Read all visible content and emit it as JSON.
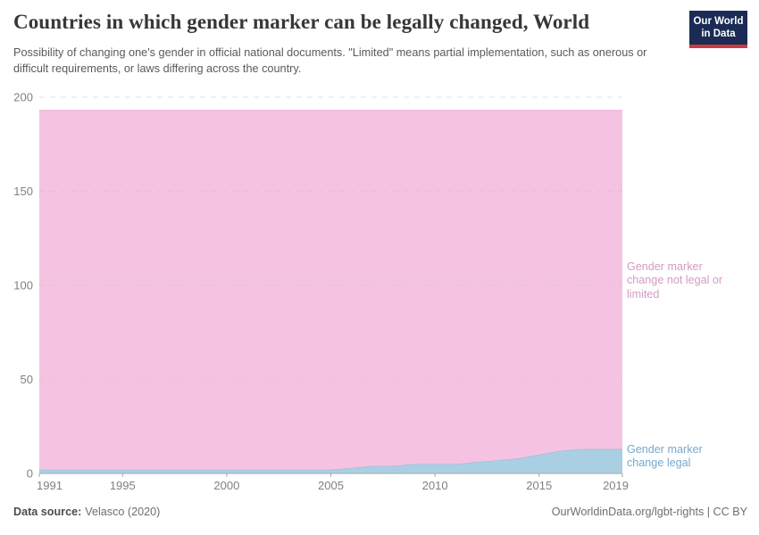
{
  "header": {
    "title": "Countries in which gender marker can be legally changed, World",
    "subtitle": "Possibility of changing one's gender in official national documents. \"Limited\" means partial implementation, such as onerous or difficult requirements, or laws differing across the country.",
    "logo": {
      "line1": "Our World",
      "line2": "in Data"
    }
  },
  "chart_data": {
    "type": "area",
    "stacked": true,
    "title": "Countries in which gender marker can be legally changed, World",
    "x": [
      1991,
      1992,
      1993,
      1994,
      1995,
      1996,
      1997,
      1998,
      1999,
      2000,
      2001,
      2002,
      2003,
      2004,
      2005,
      2006,
      2007,
      2008,
      2009,
      2010,
      2011,
      2012,
      2013,
      2014,
      2015,
      2016,
      2017,
      2018,
      2019
    ],
    "series": [
      {
        "name": "Gender marker change legal",
        "color": "#aacfe3",
        "line_color": "#8ebfdc",
        "label_color": "#76a9ce",
        "values": [
          2,
          2,
          2,
          2,
          2,
          2,
          2,
          2,
          2,
          2,
          2,
          2,
          2,
          2,
          2,
          3,
          4,
          4,
          5,
          5,
          5,
          6,
          7,
          8,
          10,
          12,
          13,
          13,
          13
        ]
      },
      {
        "name": "Gender marker change not legal or limited",
        "color": "#f5c3e1",
        "line_color": "#eeaed6",
        "label_color": "#d39bc5",
        "values": [
          191,
          191,
          191,
          191,
          191,
          191,
          191,
          191,
          191,
          191,
          191,
          191,
          191,
          191,
          191,
          190,
          189,
          189,
          188,
          188,
          188,
          187,
          186,
          185,
          183,
          181,
          180,
          180,
          180
        ]
      }
    ],
    "total_countries": 193,
    "ylim": [
      0,
      200
    ],
    "yticks": [
      0,
      50,
      100,
      150,
      200
    ],
    "xticks": [
      1991,
      1995,
      2000,
      2005,
      2010,
      2015,
      2019
    ],
    "grid": "dashed-horizontal",
    "legend_position": "right-edge-labels"
  },
  "labels": {
    "not_legal": {
      "lines": [
        "Gender marker",
        "change not legal or",
        "limited"
      ]
    },
    "legal": {
      "lines": [
        "Gender marker",
        "change legal"
      ]
    }
  },
  "footer": {
    "source_label": "Data source:",
    "source_value": "Velasco (2020)",
    "right": "OurWorldinData.org/lgbt-rights | CC BY"
  }
}
